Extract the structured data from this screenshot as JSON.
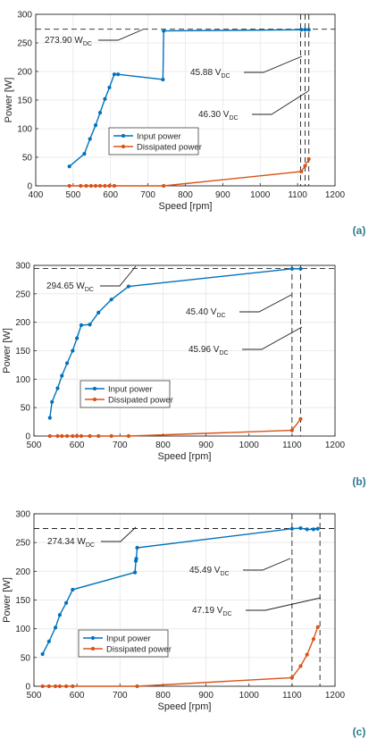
{
  "colors": {
    "input": "#0072BD",
    "dissipated": "#D95319",
    "grid": "#e6e6e6",
    "axis": "#262626",
    "panel_label": "#2a7b8f"
  },
  "chart_data": [
    {
      "type": "line",
      "panel": "(a)",
      "xlabel": "Speed [rpm]",
      "ylabel": "Power [W]",
      "xlim": [
        400,
        1200
      ],
      "ylim": [
        0,
        300
      ],
      "xticks": [
        400,
        500,
        600,
        700,
        800,
        900,
        1000,
        1100,
        1200
      ],
      "yticks": [
        0,
        50,
        100,
        150,
        200,
        250,
        300
      ],
      "grid": true,
      "legend": {
        "position": "lower-middle",
        "entries": [
          "Input power",
          "Dissipated power"
        ]
      },
      "series": [
        {
          "name": "Input power",
          "x": [
            490,
            530,
            545,
            560,
            572,
            585,
            597,
            610,
            620,
            740,
            742,
            1110,
            1120,
            1130
          ],
          "y": [
            34,
            56,
            82,
            106,
            128,
            152,
            172,
            195,
            195,
            186,
            271,
            273,
            273,
            273
          ]
        },
        {
          "name": "Dissipated power",
          "x": [
            490,
            520,
            535,
            548,
            560,
            572,
            585,
            597,
            610,
            742,
            1110,
            1120,
            1130
          ],
          "y": [
            0,
            0,
            0,
            0,
            0,
            0,
            0,
            0,
            0,
            0,
            25,
            35,
            47
          ]
        }
      ],
      "hlines": [
        {
          "y": 273.9
        }
      ],
      "vlines": [
        {
          "x": 1108
        },
        {
          "x": 1120
        },
        {
          "x": 1130
        }
      ],
      "annotations": [
        {
          "value": "273.90",
          "sub": "DC",
          "prefix": "W"
        },
        {
          "value": "45.88",
          "sub": "DC",
          "prefix": "V"
        },
        {
          "value": "46.30",
          "sub": "DC",
          "prefix": "V"
        }
      ]
    },
    {
      "type": "line",
      "panel": "(b)",
      "xlabel": "Speed [rpm]",
      "ylabel": "Power [W]",
      "xlim": [
        500,
        1200
      ],
      "ylim": [
        0,
        300
      ],
      "xticks": [
        500,
        600,
        700,
        800,
        900,
        1000,
        1100,
        1200
      ],
      "yticks": [
        0,
        50,
        100,
        150,
        200,
        250,
        300
      ],
      "grid": true,
      "legend": {
        "position": "lower-middle",
        "entries": [
          "Input power",
          "Dissipated power"
        ]
      },
      "series": [
        {
          "name": "Input power",
          "x": [
            537,
            542,
            555,
            565,
            577,
            590,
            600,
            610,
            630,
            650,
            680,
            720,
            1100,
            1120
          ],
          "y": [
            32,
            60,
            84,
            106,
            128,
            150,
            172,
            195,
            196,
            217,
            240,
            263,
            294,
            294
          ]
        },
        {
          "name": "Dissipated power",
          "x": [
            537,
            555,
            565,
            577,
            590,
            600,
            610,
            630,
            650,
            680,
            720,
            1100,
            1120
          ],
          "y": [
            0,
            0,
            0,
            0,
            0,
            0,
            0,
            0,
            0,
            0,
            0,
            10,
            30
          ]
        }
      ],
      "hlines": [
        {
          "y": 294.65
        }
      ],
      "vlines": [
        {
          "x": 1100
        },
        {
          "x": 1120
        }
      ],
      "annotations": [
        {
          "value": "294.65",
          "sub": "DC",
          "prefix": "W"
        },
        {
          "value": "45.40",
          "sub": "DC",
          "prefix": "V"
        },
        {
          "value": "45.96",
          "sub": "DC",
          "prefix": "V"
        }
      ]
    },
    {
      "type": "line",
      "panel": "(c)",
      "xlabel": "Speed [rpm]",
      "ylabel": "Power [W]",
      "xlim": [
        500,
        1200
      ],
      "ylim": [
        0,
        300
      ],
      "xticks": [
        500,
        600,
        700,
        800,
        900,
        1000,
        1100,
        1200
      ],
      "yticks": [
        0,
        50,
        100,
        150,
        200,
        250,
        300
      ],
      "grid": true,
      "legend": {
        "position": "lower-middle",
        "entries": [
          "Input power",
          "Dissipated power"
        ]
      },
      "series": [
        {
          "name": "Input power",
          "x": [
            520,
            535,
            550,
            560,
            575,
            590,
            735,
            737,
            738,
            740,
            1100,
            1120,
            1135,
            1150,
            1160
          ],
          "y": [
            56,
            78,
            102,
            124,
            145,
            168,
            198,
            218,
            222,
            241,
            274,
            275,
            273,
            273,
            274
          ]
        },
        {
          "name": "Dissipated power",
          "x": [
            520,
            535,
            550,
            560,
            575,
            590,
            740,
            1100,
            1120,
            1135,
            1150,
            1160
          ],
          "y": [
            0,
            0,
            0,
            0,
            0,
            0,
            0,
            15,
            35,
            55,
            82,
            103
          ]
        }
      ],
      "hlines": [
        {
          "y": 274.34
        }
      ],
      "vlines": [
        {
          "x": 1100
        },
        {
          "x": 1165
        }
      ],
      "annotations": [
        {
          "value": "274.34",
          "sub": "DC",
          "prefix": "W"
        },
        {
          "value": "45.49",
          "sub": "DC",
          "prefix": "V"
        },
        {
          "value": "47.19",
          "sub": "DC",
          "prefix": "V"
        }
      ]
    }
  ]
}
